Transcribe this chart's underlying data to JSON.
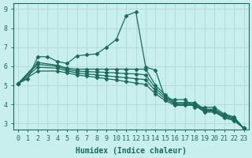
{
  "xlabel": "Humidex (Indice chaleur)",
  "ylabel": "",
  "bg_color": "#c8eeed",
  "grid_color": "#b0d8d5",
  "line_color": "#1a6b5a",
  "xlim": [
    -0.5,
    23.5
  ],
  "ylim": [
    2.7,
    9.3
  ],
  "xticks": [
    0,
    1,
    2,
    3,
    4,
    5,
    6,
    7,
    8,
    9,
    10,
    11,
    12,
    13,
    14,
    15,
    16,
    17,
    18,
    19,
    20,
    21,
    22,
    23
  ],
  "yticks": [
    3,
    4,
    5,
    6,
    7,
    8,
    9
  ],
  "lines": [
    {
      "x": [
        0,
        1,
        2,
        3,
        4,
        5,
        6,
        7,
        8,
        9,
        10,
        11,
        12,
        13,
        14,
        15,
        16,
        17,
        18,
        19,
        20,
        21,
        22,
        23
      ],
      "y": [
        5.1,
        5.35,
        6.5,
        6.5,
        6.25,
        6.15,
        6.55,
        6.6,
        6.65,
        7.0,
        7.4,
        8.65,
        8.85,
        5.95,
        5.8,
        4.3,
        4.25,
        4.25,
        3.85,
        3.85,
        3.85,
        3.5,
        3.35,
        2.75
      ]
    },
    {
      "x": [
        0,
        2,
        4,
        5,
        6,
        7,
        8,
        9,
        10,
        11,
        12,
        13,
        14,
        15,
        16,
        17,
        18,
        19,
        20,
        21,
        22,
        23
      ],
      "y": [
        5.1,
        6.2,
        6.05,
        5.9,
        5.85,
        5.85,
        5.85,
        5.85,
        5.85,
        5.85,
        5.85,
        5.85,
        5.0,
        4.5,
        4.1,
        4.1,
        4.1,
        3.75,
        3.75,
        3.45,
        3.3,
        2.75
      ]
    },
    {
      "x": [
        0,
        2,
        4,
        5,
        6,
        7,
        8,
        9,
        10,
        11,
        12,
        13,
        14,
        15,
        16,
        17,
        18,
        19,
        20,
        21,
        22,
        23
      ],
      "y": [
        5.1,
        6.1,
        6.0,
        5.83,
        5.75,
        5.72,
        5.7,
        5.68,
        5.65,
        5.62,
        5.6,
        5.55,
        4.85,
        4.4,
        4.05,
        4.05,
        4.05,
        3.7,
        3.7,
        3.4,
        3.25,
        2.75
      ]
    },
    {
      "x": [
        0,
        2,
        4,
        5,
        6,
        7,
        8,
        9,
        10,
        11,
        12,
        13,
        14,
        15,
        16,
        17,
        18,
        19,
        20,
        21,
        22,
        23
      ],
      "y": [
        5.1,
        5.95,
        5.9,
        5.76,
        5.65,
        5.6,
        5.55,
        5.5,
        5.45,
        5.4,
        5.35,
        5.3,
        4.7,
        4.3,
        4.0,
        4.0,
        4.0,
        3.65,
        3.65,
        3.35,
        3.2,
        2.75
      ]
    },
    {
      "x": [
        0,
        2,
        4,
        5,
        6,
        7,
        8,
        9,
        10,
        11,
        12,
        13,
        14,
        15,
        16,
        17,
        18,
        19,
        20,
        21,
        22,
        23
      ],
      "y": [
        5.1,
        5.75,
        5.75,
        5.65,
        5.55,
        5.48,
        5.42,
        5.35,
        5.28,
        5.2,
        5.12,
        5.05,
        4.55,
        4.2,
        3.95,
        3.95,
        3.95,
        3.6,
        3.6,
        3.3,
        3.15,
        2.75
      ]
    }
  ],
  "marker": "D",
  "markersize": 2.5,
  "linewidth": 0.9,
  "axis_label_fontsize": 7,
  "tick_fontsize": 6
}
